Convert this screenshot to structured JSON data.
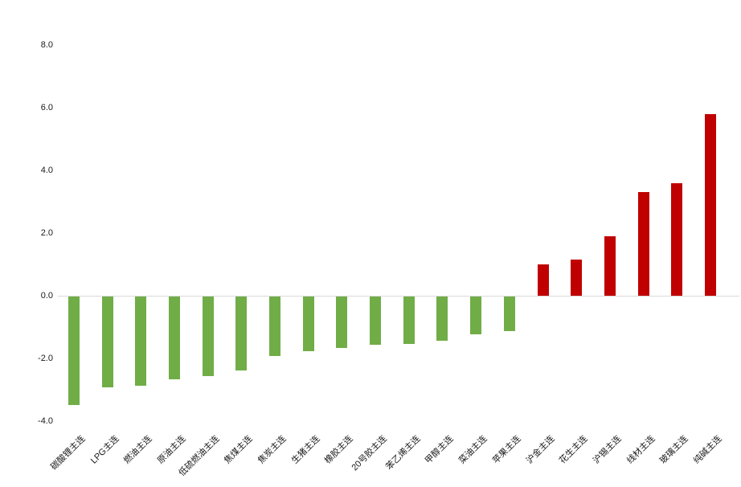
{
  "chart_data": {
    "type": "bar",
    "title": "",
    "xlabel": "",
    "ylabel": "",
    "legend": "none",
    "grid": "zero-line-only",
    "sorted": "ascending",
    "background_color": "#FFFFFF",
    "categories": [
      "碳酸锂主连",
      "LPG主连",
      "燃油主连",
      "原油主连",
      "低硫燃油主连",
      "焦煤主连",
      "焦炭主连",
      "生猪主连",
      "橡胶主连",
      "20号胶主连",
      "苯乙烯主连",
      "甲醇主连",
      "菜油主连",
      "苹果主连",
      "沪金主连",
      "花生主连",
      "沪锡主连",
      "线材主连",
      "玻璃主连",
      "纯碱主连"
    ],
    "values": [
      -3.45,
      -2.9,
      -2.85,
      -2.65,
      -2.55,
      -2.35,
      -1.9,
      -1.75,
      -1.65,
      -1.55,
      -1.5,
      -1.4,
      -1.2,
      -1.1,
      1.0,
      1.15,
      1.9,
      3.3,
      3.6,
      5.8
    ],
    "yticks": [
      8,
      6,
      4,
      2,
      0,
      -2,
      -4
    ],
    "ytick_labels": [
      "8.0",
      "6.0",
      "4.0",
      "2.0",
      "0.0",
      "-2.0",
      "-4.0"
    ],
    "ylim": [
      -4.6,
      8.8
    ],
    "colors": {
      "positive_bar": "#C00000",
      "negative_bar": "#70AD47",
      "gridline": "#D9D9D9",
      "axis_text": "#1A1A1A"
    }
  }
}
